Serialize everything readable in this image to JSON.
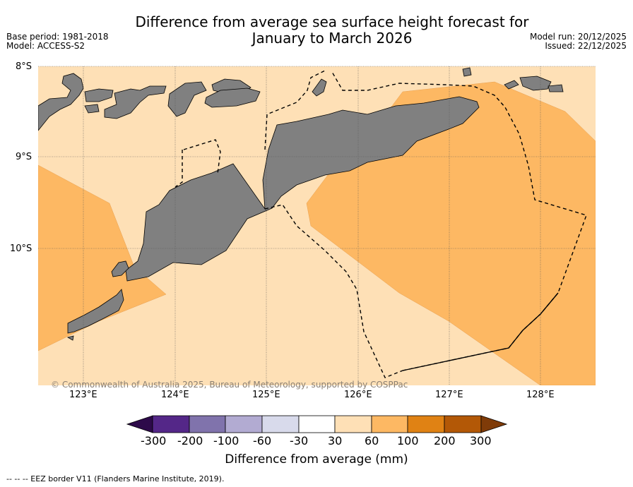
{
  "title_line1": "Difference from average sea surface height forecast for",
  "title_line2": "January to March 2026",
  "base_period": "Base period: 1981-2018",
  "model": "Model: ACCESS-S2",
  "model_run": "Model run: 20/12/2025",
  "issued": "Issued: 22/12/2025",
  "lat_labels": [
    "8°S",
    "9°S",
    "10°S"
  ],
  "lon_labels": [
    "123°E",
    "124°E",
    "125°E",
    "126°E",
    "127°E",
    "128°E"
  ],
  "copyright": "© Commonwealth of Australia 2025, Bureau of Meteorology, supported by COSPPac",
  "colorbar": {
    "ticks": [
      "-300",
      "-200",
      "-100",
      "-60",
      "-30",
      "30",
      "60",
      "100",
      "200",
      "300"
    ],
    "colors": [
      "#2d0a4a",
      "#542788",
      "#8073ac",
      "#b2abd2",
      "#d8daeb",
      "#ffffff",
      "#fee0b6",
      "#fdb863",
      "#e08214",
      "#b35806",
      "#7f3b08"
    ],
    "title": "Difference from average (mm)"
  },
  "footnote": "--  --  -- EEZ border V11 (Flanders Marine Institute, 2019).",
  "map_colors": {
    "light": "#fee0b6",
    "medium": "#fdb863",
    "land": "#808080"
  }
}
